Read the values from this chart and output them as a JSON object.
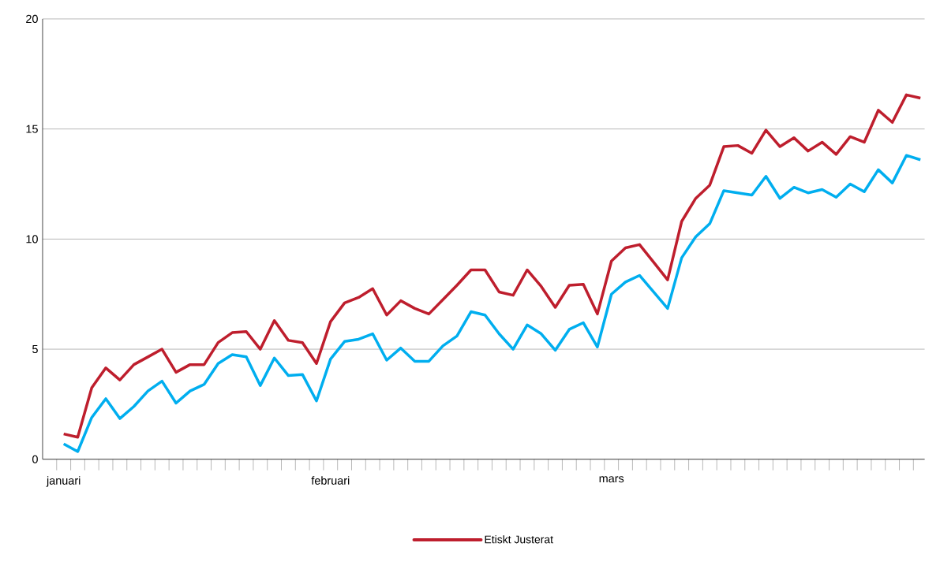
{
  "chart_data": {
    "type": "line",
    "categories": [
      "januari",
      null,
      null,
      null,
      null,
      null,
      null,
      null,
      null,
      null,
      null,
      null,
      null,
      null,
      null,
      null,
      null,
      null,
      null,
      "februari",
      null,
      null,
      null,
      null,
      null,
      null,
      null,
      null,
      null,
      null,
      null,
      null,
      null,
      null,
      null,
      null,
      null,
      null,
      null,
      "mars",
      null,
      null,
      null,
      null,
      null,
      null,
      null,
      null,
      null,
      null,
      null,
      null,
      null,
      null,
      null,
      null,
      null,
      null,
      null,
      null,
      null,
      null
    ],
    "series": [
      {
        "name": "Etiskt Justerat",
        "color": "#be1e2d",
        "values": [
          1.15,
          1.0,
          3.25,
          4.15,
          3.6,
          4.3,
          4.65,
          5.0,
          3.95,
          4.3,
          4.3,
          5.3,
          5.75,
          5.8,
          5.0,
          6.3,
          5.4,
          5.3,
          4.35,
          6.25,
          7.1,
          7.35,
          7.75,
          6.55,
          7.2,
          6.85,
          6.6,
          7.25,
          7.9,
          8.6,
          8.6,
          7.6,
          7.45,
          8.6,
          7.85,
          6.9,
          7.9,
          7.95,
          6.6,
          9.0,
          9.6,
          9.75,
          8.95,
          8.15,
          10.8,
          11.85,
          12.45,
          14.2,
          14.25,
          13.9,
          14.95,
          14.2,
          14.6,
          14.0,
          14.4,
          13.85,
          14.65,
          14.4,
          15.85,
          15.3,
          16.55,
          16.4
        ]
      },
      {
        "color": "#00aeef",
        "values": [
          0.7,
          0.35,
          1.9,
          2.75,
          1.85,
          2.4,
          3.1,
          3.55,
          2.55,
          3.1,
          3.4,
          4.35,
          4.75,
          4.65,
          3.35,
          4.6,
          3.8,
          3.85,
          2.65,
          4.55,
          5.35,
          5.45,
          5.7,
          4.5,
          5.05,
          4.45,
          4.45,
          5.15,
          5.6,
          6.7,
          6.55,
          5.7,
          5.0,
          6.1,
          5.7,
          4.95,
          5.9,
          6.2,
          5.1,
          7.5,
          8.05,
          8.35,
          7.6,
          6.85,
          9.15,
          10.1,
          10.7,
          12.2,
          12.1,
          12.0,
          12.85,
          11.85,
          12.35,
          12.1,
          12.25,
          11.9,
          12.5,
          12.15,
          13.15,
          12.55,
          13.8,
          13.6
        ]
      }
    ],
    "ylim": [
      0,
      20
    ],
    "yticks": [
      0,
      5,
      10,
      15,
      20
    ],
    "grid": "y",
    "legend": "bottom",
    "marker": "none",
    "line_style": "solid"
  }
}
